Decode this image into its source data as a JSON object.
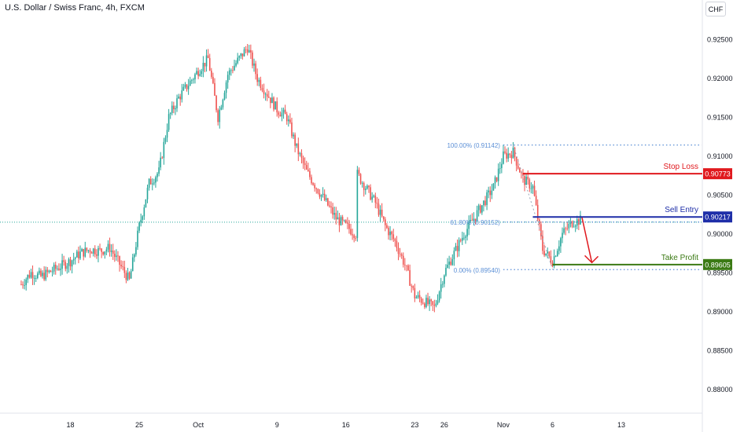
{
  "header": {
    "title": "U.S. Dollar / Swiss Franc, 4h, FXCM",
    "currency_button": "CHF"
  },
  "colors": {
    "up": "#26a69a",
    "down": "#ef5350",
    "fib": "#5b8fd6",
    "stop": "#e0191e",
    "entry": "#1e2ea8",
    "profit": "#3b7a14",
    "arrow": "#e0191e"
  },
  "chart_data": {
    "type": "candlestick",
    "title": "U.S. Dollar / Swiss Franc, 4h, FXCM",
    "ylim": [
      0.8775,
      0.9285
    ],
    "y_ticks": [
      "0.92500",
      "0.92000",
      "0.91500",
      "0.91000",
      "0.90500",
      "0.90000",
      "0.89500",
      "0.89000",
      "0.88500",
      "0.88000"
    ],
    "x_ticks": [
      "18",
      "25",
      "Oct",
      "9",
      "16",
      "23",
      "26",
      "Nov",
      "6",
      "13"
    ],
    "current_price": 0.9015,
    "fibonacci": [
      {
        "label": "100.00% (0.91142)",
        "value": 0.91142
      },
      {
        "label": "61.80% (0.90152)",
        "value": 0.90152
      },
      {
        "label": "0.00% (0.89540)",
        "value": 0.8954
      }
    ],
    "levels": [
      {
        "name": "Stop Loss",
        "value": 0.90773,
        "label": "0.90773"
      },
      {
        "name": "Sell Entry",
        "value": 0.90217,
        "label": "0.90217"
      },
      {
        "name": "Take Profit",
        "value": 0.89605,
        "label": "0.89605"
      }
    ],
    "path": [
      [
        "2023-09-13",
        0.8935
      ],
      [
        "2023-09-14",
        0.895
      ],
      [
        "2023-09-15",
        0.8945
      ],
      [
        "2023-09-18",
        0.8965
      ],
      [
        "2023-09-19",
        0.8975
      ],
      [
        "2023-09-20",
        0.898
      ],
      [
        "2023-09-21",
        0.8978
      ],
      [
        "2023-09-22",
        0.8982
      ],
      [
        "2023-09-24",
        0.894
      ],
      [
        "2023-09-25",
        0.901
      ],
      [
        "2023-09-26",
        0.9065
      ],
      [
        "2023-09-27",
        0.908
      ],
      [
        "2023-09-28",
        0.915
      ],
      [
        "2023-09-29",
        0.9175
      ],
      [
        "2023-10-01",
        0.921
      ],
      [
        "2023-10-02",
        0.9225
      ],
      [
        "2023-10-03",
        0.915
      ],
      [
        "2023-10-04",
        0.9205
      ],
      [
        "2023-10-06",
        0.924
      ],
      [
        "2023-10-07",
        0.92
      ],
      [
        "2023-10-09",
        0.916
      ],
      [
        "2023-10-10",
        0.915
      ],
      [
        "2023-10-11",
        0.911
      ],
      [
        "2023-10-12",
        0.908
      ],
      [
        "2023-10-13",
        0.906
      ],
      [
        "2023-10-14",
        0.904
      ],
      [
        "2023-10-15",
        0.902
      ],
      [
        "2023-10-17",
        0.9
      ],
      [
        "2023-10-17",
        0.908
      ],
      [
        "2023-10-19",
        0.904
      ],
      [
        "2023-10-20",
        0.901
      ],
      [
        "2023-10-21",
        0.899
      ],
      [
        "2023-10-22",
        0.896
      ],
      [
        "2023-10-23",
        0.892
      ],
      [
        "2023-10-25",
        0.8905
      ],
      [
        "2023-10-26",
        0.895
      ],
      [
        "2023-10-27",
        0.8975
      ],
      [
        "2023-10-28",
        0.9
      ],
      [
        "2023-10-30",
        0.904
      ],
      [
        "2023-10-31",
        0.906
      ],
      [
        "2023-11-01",
        0.91
      ],
      [
        "2023-11-02",
        0.9105
      ],
      [
        "2023-11-03",
        0.907
      ],
      [
        "2023-11-04",
        0.906
      ],
      [
        "2023-11-05",
        0.898
      ],
      [
        "2023-11-06",
        0.8965
      ],
      [
        "2023-11-07",
        0.9
      ],
      [
        "2023-11-08",
        0.9015
      ],
      [
        "2023-11-09",
        0.9018
      ]
    ],
    "projection": [
      [
        "2023-11-09",
        0.9021
      ],
      [
        "2023-11-10",
        0.8963
      ]
    ]
  }
}
